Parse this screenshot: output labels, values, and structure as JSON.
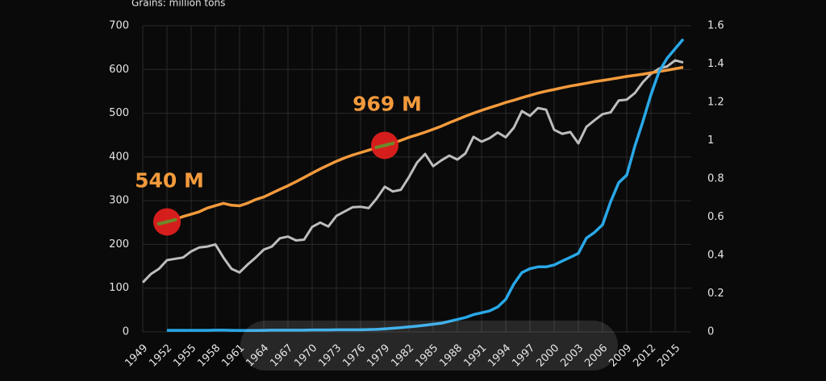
{
  "chart_data": {
    "type": "line",
    "title": "Grains: million tons",
    "x": [
      1949,
      1950,
      1951,
      1952,
      1953,
      1954,
      1955,
      1956,
      1957,
      1958,
      1959,
      1960,
      1961,
      1962,
      1963,
      1964,
      1965,
      1966,
      1967,
      1968,
      1969,
      1970,
      1971,
      1972,
      1973,
      1974,
      1975,
      1976,
      1977,
      1978,
      1979,
      1980,
      1981,
      1982,
      1983,
      1984,
      1985,
      1986,
      1987,
      1988,
      1989,
      1990,
      1991,
      1992,
      1993,
      1994,
      1995,
      1996,
      1997,
      1998,
      1999,
      2000,
      2001,
      2002,
      2003,
      2004,
      2005,
      2006,
      2007,
      2008,
      2009,
      2010,
      2011,
      2012,
      2013,
      2014,
      2015,
      2016
    ],
    "xlim": [
      1949,
      2017
    ],
    "xticks": [
      1949,
      1952,
      1955,
      1958,
      1961,
      1964,
      1967,
      1970,
      1973,
      1976,
      1979,
      1982,
      1985,
      1988,
      1991,
      1994,
      1997,
      2000,
      2003,
      2006,
      2009,
      2012,
      2015
    ],
    "ylim": [
      0,
      700
    ],
    "yticks": [
      0,
      100,
      200,
      300,
      400,
      500,
      600,
      700
    ],
    "y2lim": [
      0,
      1.6
    ],
    "y2ticks": [
      0,
      0.2,
      0.4,
      0.6,
      0.8,
      1,
      1.2,
      1.4,
      1.6
    ],
    "grid": true,
    "series": [
      {
        "color": "#bdbdbd",
        "axis": "y",
        "values": [
          113,
          132,
          144,
          164,
          167,
          170,
          184,
          193,
          195,
          200,
          170,
          144,
          136,
          154,
          170,
          188,
          195,
          214,
          218,
          209,
          211,
          240,
          250,
          241,
          265,
          275,
          285,
          286,
          283,
          305,
          332,
          321,
          325,
          354,
          387,
          407,
          379,
          392,
          403,
          394,
          408,
          446,
          435,
          443,
          456,
          445,
          467,
          505,
          494,
          512,
          508,
          462,
          453,
          457,
          431,
          469,
          484,
          498,
          502,
          529,
          531,
          546,
          571,
          590,
          602,
          607,
          621,
          616
        ]
      },
      {
        "color": "#f39a3c",
        "axis": "y2",
        "values": [
          null,
          null,
          null,
          0.575,
          0.588,
          0.603,
          0.615,
          0.628,
          0.647,
          0.66,
          0.672,
          0.662,
          0.659,
          0.673,
          0.692,
          0.705,
          0.725,
          0.745,
          0.764,
          0.785,
          0.807,
          0.83,
          0.852,
          0.872,
          0.892,
          0.909,
          0.924,
          0.937,
          0.95,
          0.963,
          0.975,
          0.987,
          1.001,
          1.017,
          1.03,
          1.044,
          1.059,
          1.075,
          1.093,
          1.11,
          1.127,
          1.143,
          1.158,
          1.172,
          1.185,
          1.199,
          1.211,
          1.224,
          1.236,
          1.248,
          1.258,
          1.267,
          1.276,
          1.285,
          1.292,
          1.3,
          1.308,
          1.314,
          1.321,
          1.328,
          1.335,
          1.341,
          1.347,
          1.354,
          1.361,
          1.368,
          1.375,
          1.383
        ]
      },
      {
        "color": "#29a8e8",
        "axis": "y2",
        "values": [
          null,
          null,
          null,
          0.008,
          0.008,
          0.008,
          0.008,
          0.008,
          0.008,
          0.009,
          0.009,
          0.008,
          0.007,
          0.007,
          0.007,
          0.008,
          0.009,
          0.009,
          0.009,
          0.009,
          0.009,
          0.01,
          0.01,
          0.01,
          0.011,
          0.011,
          0.011,
          0.011,
          0.012,
          0.013,
          0.016,
          0.019,
          0.022,
          0.026,
          0.03,
          0.035,
          0.04,
          0.045,
          0.055,
          0.065,
          0.075,
          0.09,
          0.1,
          0.11,
          0.13,
          0.17,
          0.25,
          0.31,
          0.33,
          0.34,
          0.34,
          0.35,
          0.37,
          0.39,
          0.41,
          0.49,
          0.52,
          0.56,
          0.68,
          0.78,
          0.82,
          0.97,
          1.1,
          1.24,
          1.36,
          1.43,
          1.48,
          1.53
        ]
      }
    ],
    "annotations": [
      {
        "text": "540 M",
        "x": 1952
      },
      {
        "text": "969 M",
        "x": 1979
      }
    ]
  }
}
